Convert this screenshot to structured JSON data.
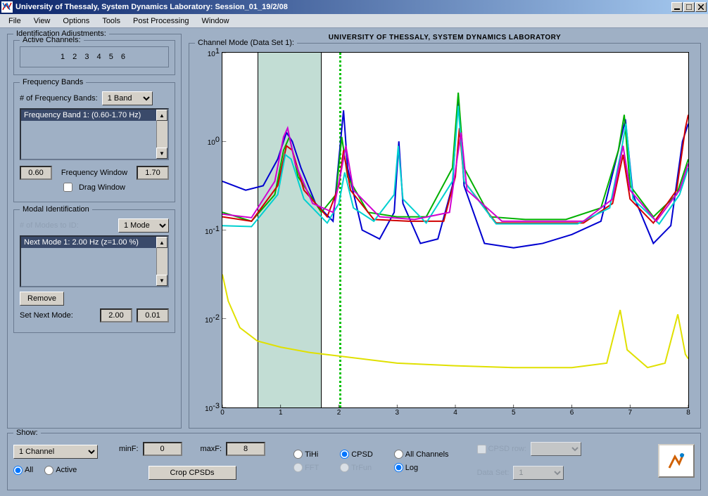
{
  "window": {
    "title": "University of Thessaly, System Dynamics Laboratory: Session_01_19/2/08"
  },
  "menu": [
    "File",
    "View",
    "Options",
    "Tools",
    "Post Processing",
    "Window"
  ],
  "identification": {
    "legend": "Identification Adjustments:",
    "active_channels_legend": "Active Channels:",
    "active_channels": "1 2 3 4 5 6",
    "freq_bands": {
      "legend": "Frequency Bands",
      "num_label": "# of Frequency Bands:",
      "num_value": "1 Band",
      "list_item": "Frequency Band 1: (0.60-1.70 Hz)",
      "window_label": "Frequency Window",
      "win_low": "0.60",
      "win_high": "1.70",
      "drag_label": "Drag Window",
      "drag_checked": false
    },
    "modal": {
      "legend": "Modal Identification",
      "num_label": "# of Modes to ID:",
      "num_value": "1 Mode",
      "list_item": "Next Mode 1: 2.00 Hz (z=1.00 %)",
      "remove_btn": "Remove",
      "setnext_label": "Set Next Mode:",
      "freq": "2.00",
      "damp": "0.01"
    }
  },
  "chart": {
    "header": "UNIVERSITY OF THESSALY, SYSTEM DYNAMICS LABORATORY",
    "legend": "Channel Mode (Data Set 1):",
    "xlim": [
      0,
      8
    ],
    "ylim_exp": [
      -3,
      1
    ],
    "xticks": [
      0,
      1,
      2,
      3,
      4,
      5,
      6,
      7,
      8
    ],
    "ytick_exps": [
      -3,
      -2,
      -1,
      0,
      1
    ],
    "shade_band": [
      0.6,
      1.7
    ],
    "vdash_x": 2.0,
    "bg": "#ffffff",
    "colors": {
      "blue": "#0000d0",
      "green": "#00b000",
      "red": "#d00000",
      "cyan": "#00d0d0",
      "magenta": "#d000d0",
      "yellow": "#e0e000"
    },
    "series": {
      "blue": [
        [
          0.0,
          -0.45
        ],
        [
          0.4,
          -0.55
        ],
        [
          0.7,
          -0.5
        ],
        [
          0.95,
          -0.2
        ],
        [
          1.1,
          0.1
        ],
        [
          1.2,
          0.0
        ],
        [
          1.35,
          -0.3
        ],
        [
          1.6,
          -0.7
        ],
        [
          1.9,
          -0.9
        ],
        [
          2.0,
          -0.2
        ],
        [
          2.08,
          0.35
        ],
        [
          2.15,
          -0.3
        ],
        [
          2.4,
          -1.0
        ],
        [
          2.7,
          -1.1
        ],
        [
          2.95,
          -0.8
        ],
        [
          3.03,
          0.0
        ],
        [
          3.1,
          -0.7
        ],
        [
          3.4,
          -1.15
        ],
        [
          3.7,
          -1.1
        ],
        [
          3.95,
          -0.5
        ],
        [
          4.05,
          0.5
        ],
        [
          4.15,
          -0.5
        ],
        [
          4.5,
          -1.15
        ],
        [
          5.0,
          -1.2
        ],
        [
          5.5,
          -1.15
        ],
        [
          6.0,
          -1.05
        ],
        [
          6.5,
          -0.9
        ],
        [
          6.8,
          -0.1
        ],
        [
          6.92,
          0.25
        ],
        [
          7.05,
          -0.6
        ],
        [
          7.4,
          -1.15
        ],
        [
          7.7,
          -0.95
        ],
        [
          7.9,
          0.0
        ],
        [
          8.0,
          0.2
        ]
      ],
      "green": [
        [
          0.0,
          -0.8
        ],
        [
          0.5,
          -0.9
        ],
        [
          0.9,
          -0.6
        ],
        [
          1.05,
          -0.1
        ],
        [
          1.15,
          0.05
        ],
        [
          1.3,
          -0.4
        ],
        [
          1.7,
          -0.8
        ],
        [
          1.95,
          -0.6
        ],
        [
          2.05,
          0.05
        ],
        [
          2.15,
          -0.4
        ],
        [
          2.5,
          -0.8
        ],
        [
          3.0,
          -0.85
        ],
        [
          3.5,
          -0.85
        ],
        [
          3.95,
          -0.3
        ],
        [
          4.05,
          0.55
        ],
        [
          4.15,
          -0.3
        ],
        [
          4.6,
          -0.85
        ],
        [
          5.2,
          -0.88
        ],
        [
          5.9,
          -0.88
        ],
        [
          6.5,
          -0.75
        ],
        [
          6.8,
          -0.1
        ],
        [
          6.9,
          0.3
        ],
        [
          7.0,
          -0.5
        ],
        [
          7.4,
          -0.85
        ],
        [
          7.8,
          -0.6
        ],
        [
          8.0,
          -0.2
        ]
      ],
      "red": [
        [
          0.0,
          -0.85
        ],
        [
          0.5,
          -0.9
        ],
        [
          0.95,
          -0.5
        ],
        [
          1.1,
          -0.05
        ],
        [
          1.2,
          -0.1
        ],
        [
          1.4,
          -0.55
        ],
        [
          1.8,
          -0.85
        ],
        [
          2.0,
          -0.5
        ],
        [
          2.08,
          -0.1
        ],
        [
          2.2,
          -0.55
        ],
        [
          2.6,
          -0.88
        ],
        [
          3.2,
          -0.9
        ],
        [
          3.8,
          -0.9
        ],
        [
          4.0,
          -0.4
        ],
        [
          4.07,
          0.15
        ],
        [
          4.15,
          -0.45
        ],
        [
          4.7,
          -0.92
        ],
        [
          5.5,
          -0.92
        ],
        [
          6.2,
          -0.92
        ],
        [
          6.7,
          -0.7
        ],
        [
          6.88,
          -0.15
        ],
        [
          7.0,
          -0.65
        ],
        [
          7.4,
          -0.92
        ],
        [
          7.8,
          -0.55
        ],
        [
          7.95,
          0.15
        ],
        [
          8.0,
          0.3
        ]
      ],
      "cyan": [
        [
          0.0,
          -0.95
        ],
        [
          0.5,
          -0.96
        ],
        [
          0.95,
          -0.6
        ],
        [
          1.08,
          -0.15
        ],
        [
          1.18,
          -0.2
        ],
        [
          1.4,
          -0.65
        ],
        [
          1.8,
          -0.92
        ],
        [
          2.0,
          -0.7
        ],
        [
          2.1,
          -0.35
        ],
        [
          2.25,
          -0.75
        ],
        [
          2.6,
          -0.9
        ],
        [
          2.95,
          -0.6
        ],
        [
          3.02,
          -0.05
        ],
        [
          3.1,
          -0.65
        ],
        [
          3.5,
          -0.92
        ],
        [
          3.95,
          -0.45
        ],
        [
          4.05,
          0.4
        ],
        [
          4.15,
          -0.45
        ],
        [
          4.7,
          -0.93
        ],
        [
          5.4,
          -0.93
        ],
        [
          6.1,
          -0.93
        ],
        [
          6.65,
          -0.75
        ],
        [
          6.85,
          -0.1
        ],
        [
          6.93,
          0.2
        ],
        [
          7.05,
          -0.65
        ],
        [
          7.5,
          -0.93
        ],
        [
          7.85,
          -0.6
        ],
        [
          8.0,
          -0.3
        ]
      ],
      "magenta": [
        [
          0.0,
          -0.82
        ],
        [
          0.5,
          -0.86
        ],
        [
          0.9,
          -0.45
        ],
        [
          1.05,
          0.05
        ],
        [
          1.12,
          0.15
        ],
        [
          1.25,
          -0.25
        ],
        [
          1.55,
          -0.7
        ],
        [
          1.9,
          -0.8
        ],
        [
          2.05,
          -0.3
        ],
        [
          2.12,
          -0.05
        ],
        [
          2.25,
          -0.55
        ],
        [
          2.7,
          -0.85
        ],
        [
          3.3,
          -0.88
        ],
        [
          3.9,
          -0.8
        ],
        [
          4.03,
          -0.2
        ],
        [
          4.1,
          0.1
        ],
        [
          4.2,
          -0.55
        ],
        [
          4.8,
          -0.9
        ],
        [
          5.5,
          -0.9
        ],
        [
          6.2,
          -0.9
        ],
        [
          6.7,
          -0.65
        ],
        [
          6.88,
          -0.05
        ],
        [
          7.0,
          -0.55
        ],
        [
          7.45,
          -0.9
        ],
        [
          7.85,
          -0.55
        ],
        [
          8.0,
          -0.25
        ]
      ],
      "yellow": [
        [
          0.0,
          -1.5
        ],
        [
          0.1,
          -1.8
        ],
        [
          0.3,
          -2.1
        ],
        [
          0.6,
          -2.25
        ],
        [
          1.0,
          -2.32
        ],
        [
          1.5,
          -2.38
        ],
        [
          2.0,
          -2.42
        ],
        [
          3.0,
          -2.5
        ],
        [
          4.0,
          -2.53
        ],
        [
          5.0,
          -2.55
        ],
        [
          6.0,
          -2.55
        ],
        [
          6.6,
          -2.5
        ],
        [
          6.83,
          -1.9
        ],
        [
          6.95,
          -2.35
        ],
        [
          7.3,
          -2.55
        ],
        [
          7.6,
          -2.5
        ],
        [
          7.82,
          -1.95
        ],
        [
          7.95,
          -2.4
        ],
        [
          8.0,
          -2.45
        ]
      ]
    }
  },
  "show": {
    "legend": "Show:",
    "channel_sel": "1 Channel",
    "all": "All",
    "active": "Active",
    "minf_label": "minF:",
    "minf": "0",
    "maxf_label": "maxF:",
    "maxf": "8",
    "crop_btn": "Crop CPSDs",
    "r_tihi": "TiHi",
    "r_fft": "FFT",
    "r_cpsd": "CPSD",
    "r_trfun": "TrFun",
    "r_allch": "All Channels",
    "r_log": "Log",
    "cpsdrow_label": "CPSD row:",
    "dataset_label": "Data Set:",
    "dataset_val": "1"
  }
}
